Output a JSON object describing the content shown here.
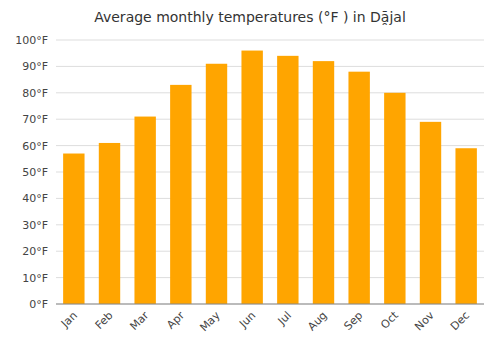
{
  "chart_data": {
    "type": "bar",
    "title": "Average monthly temperatures (°F ) in Dā̯jal",
    "categories": [
      "Jan",
      "Feb",
      "Mar",
      "Apr",
      "May",
      "Jun",
      "Jul",
      "Aug",
      "Sep",
      "Oct",
      "Nov",
      "Dec"
    ],
    "values": [
      57,
      61,
      71,
      83,
      91,
      96,
      94,
      92,
      88,
      80,
      69,
      59
    ],
    "color": "#FFA500",
    "ylim": [
      0,
      100
    ],
    "yticks": [
      {
        "value": 0,
        "label": "0°F"
      },
      {
        "value": 10,
        "label": "10°F"
      },
      {
        "value": 20,
        "label": "20°F"
      },
      {
        "value": 30,
        "label": "30°F"
      },
      {
        "value": 40,
        "label": "40°F"
      },
      {
        "value": 50,
        "label": "50°F"
      },
      {
        "value": 60,
        "label": "60°F"
      },
      {
        "value": 70,
        "label": "70°F"
      },
      {
        "value": 80,
        "label": "80°F"
      },
      {
        "value": 90,
        "label": "90°F"
      },
      {
        "value": 100,
        "label": "100°F"
      }
    ],
    "grid": true
  }
}
